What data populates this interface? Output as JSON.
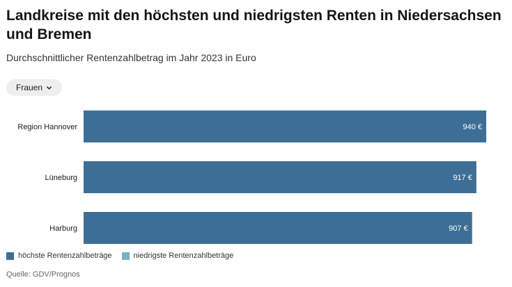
{
  "title": "Landkreise mit den höchsten und niedrigsten Renten in Niedersachsen und Bremen",
  "subtitle": "Durchschnittlicher Rentenzahlbetrag im Jahr 2023 in Euro",
  "filter": {
    "selected": "Frauen",
    "icon": "chevron-down-icon"
  },
  "legend": [
    {
      "label": "höchste Rentenzahlbeträge",
      "color": "#3d6f96"
    },
    {
      "label": "niedrigste Rentenzahlbeträge",
      "color": "#7ab0c4"
    }
  ],
  "source": "Quelle: GDV/Prognos",
  "chart_data": {
    "type": "bar",
    "orientation": "horizontal",
    "categories": [
      "Region Hannover",
      "Lüneburg",
      "Harburg"
    ],
    "series": [
      {
        "name": "höchste Rentenzahlbeträge",
        "values": [
          940,
          917,
          907
        ],
        "color": "#3d6f96"
      }
    ],
    "value_labels": [
      "940  €",
      "917  €",
      "907  €"
    ],
    "xlim": [
      0,
      940
    ],
    "grid": false
  }
}
